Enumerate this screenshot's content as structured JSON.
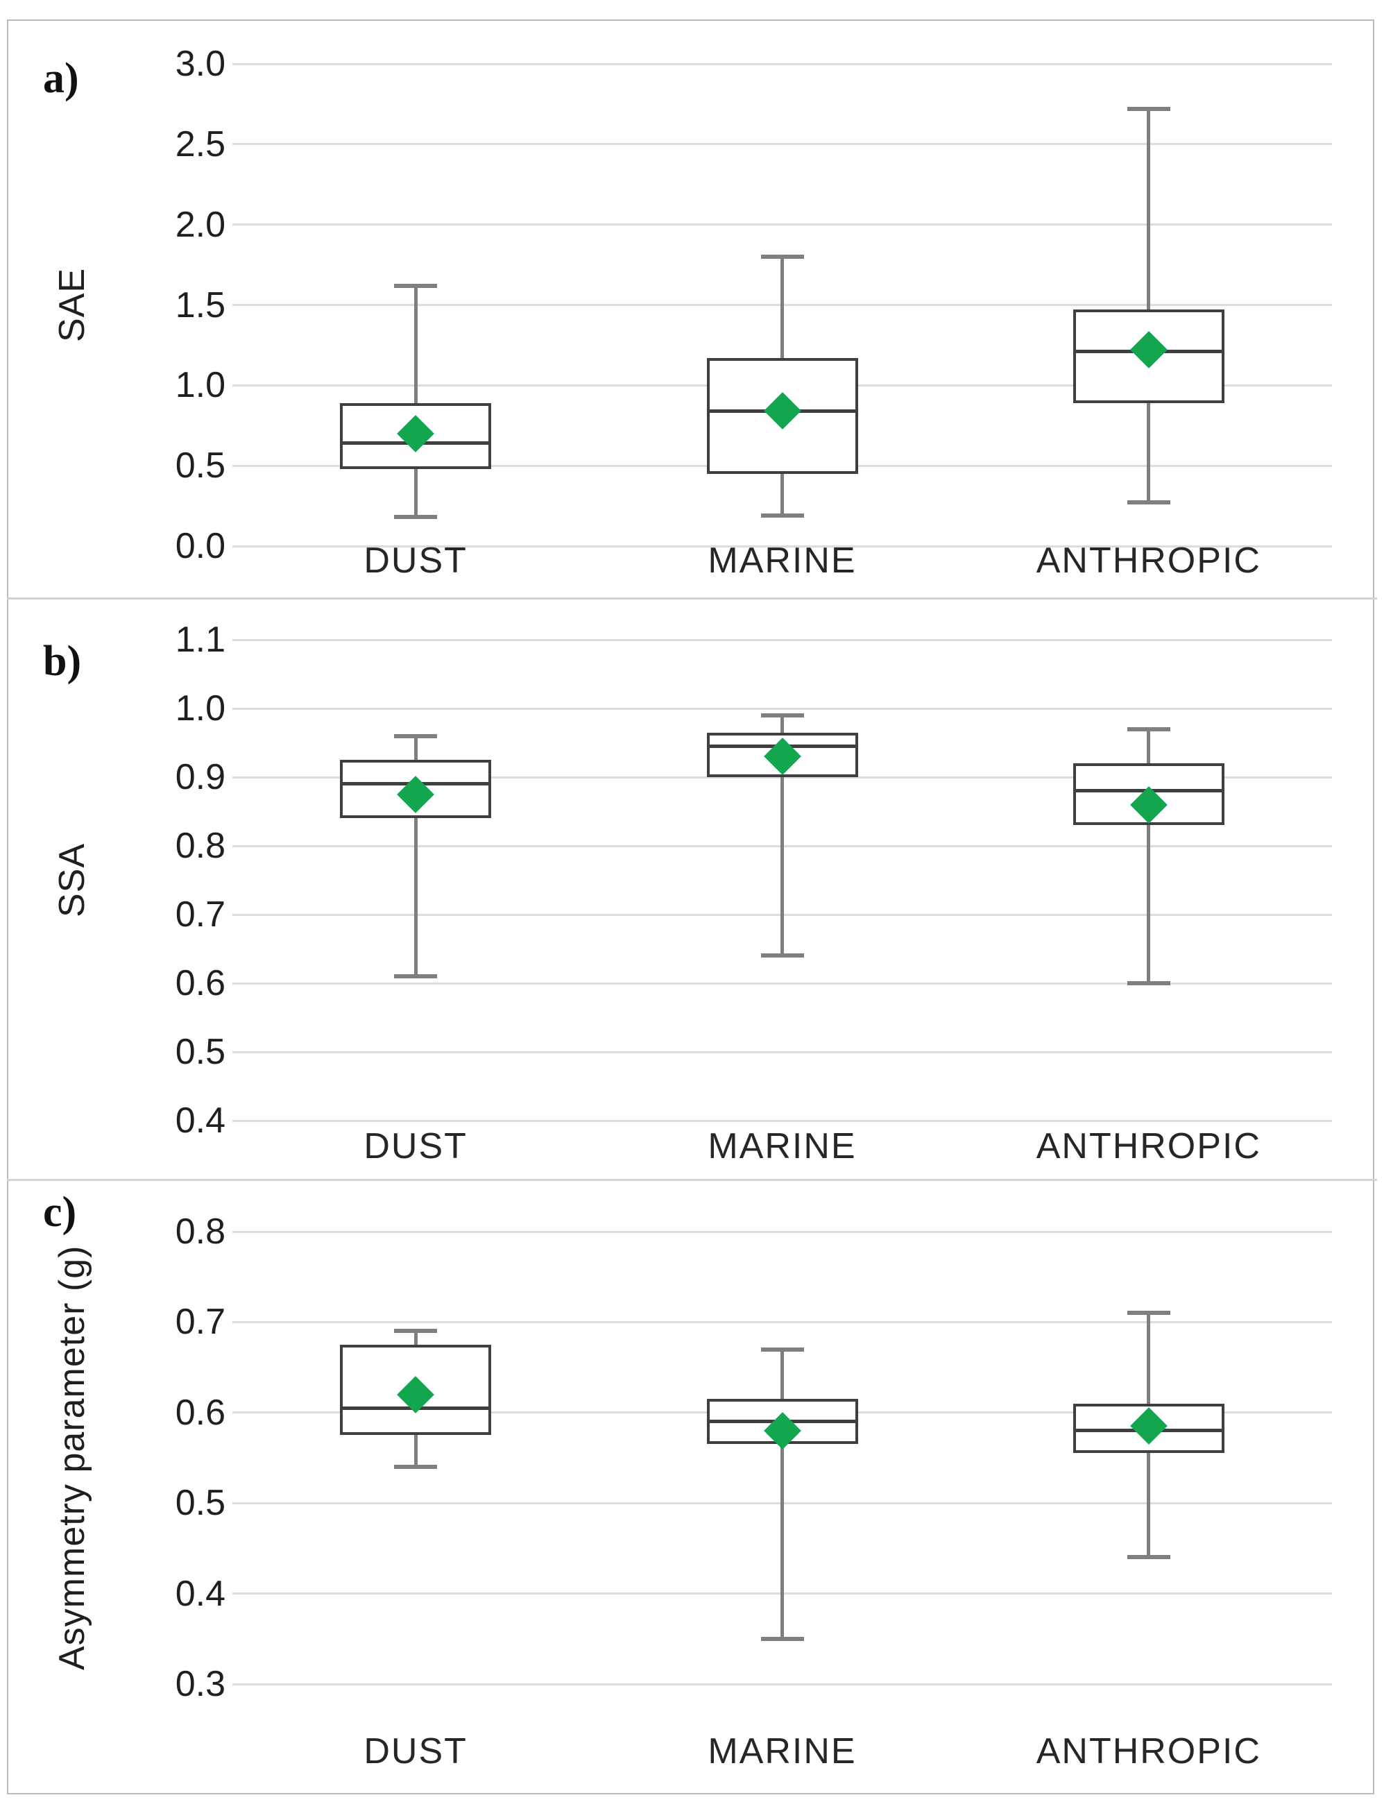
{
  "figure_title": "",
  "style": {
    "mean_diamond_color": "#12a74e",
    "box_border_color": "#3f3f3f",
    "median_color": "#3f3f3f",
    "whisker_color": "#7f7f7f",
    "gridline_color": "#dcdcdc",
    "text_color": "#1f1f1f"
  },
  "chart_data": [
    {
      "type": "box",
      "panel_label": "a)",
      "ylabel": "SAE",
      "ylim": [
        0.0,
        3.0
      ],
      "yticks": [
        3.0,
        2.5,
        2.0,
        1.5,
        1.0,
        0.5,
        0.0
      ],
      "grid": true,
      "legend": false,
      "mean_marker": "diamond",
      "categories": [
        "DUST",
        "MARINE",
        "ANTHROPIC"
      ],
      "series": [
        {
          "name": "DUST",
          "whisker_low": 0.18,
          "q1": 0.48,
          "median": 0.64,
          "mean": 0.7,
          "q3": 0.89,
          "whisker_high": 1.62
        },
        {
          "name": "MARINE",
          "whisker_low": 0.19,
          "q1": 0.45,
          "median": 0.84,
          "mean": 0.84,
          "q3": 1.17,
          "whisker_high": 1.8
        },
        {
          "name": "ANTHROPIC",
          "whisker_low": 0.27,
          "q1": 0.89,
          "median": 1.21,
          "mean": 1.22,
          "q3": 1.47,
          "whisker_high": 2.72
        }
      ]
    },
    {
      "type": "box",
      "panel_label": "b)",
      "ylabel": "SSA",
      "ylim": [
        0.4,
        1.1
      ],
      "yticks": [
        1.1,
        1.0,
        0.9,
        0.8,
        0.7,
        0.6,
        0.5,
        0.4
      ],
      "grid": true,
      "legend": false,
      "mean_marker": "diamond",
      "categories": [
        "DUST",
        "MARINE",
        "ANTHROPIC"
      ],
      "series": [
        {
          "name": "DUST",
          "whisker_low": 0.61,
          "q1": 0.84,
          "median": 0.89,
          "mean": 0.875,
          "q3": 0.925,
          "whisker_high": 0.96
        },
        {
          "name": "MARINE",
          "whisker_low": 0.64,
          "q1": 0.9,
          "median": 0.945,
          "mean": 0.93,
          "q3": 0.965,
          "whisker_high": 0.99
        },
        {
          "name": "ANTHROPIC",
          "whisker_low": 0.6,
          "q1": 0.83,
          "median": 0.88,
          "mean": 0.86,
          "q3": 0.92,
          "whisker_high": 0.97
        }
      ]
    },
    {
      "type": "box",
      "panel_label": "c)",
      "ylabel": "Asymmetry parameter (g)",
      "ylim": [
        0.3,
        0.8
      ],
      "yticks": [
        0.8,
        0.7,
        0.6,
        0.5,
        0.4,
        0.3
      ],
      "grid": true,
      "legend": false,
      "mean_marker": "diamond",
      "categories": [
        "DUST",
        "MARINE",
        "ANTHROPIC"
      ],
      "series": [
        {
          "name": "DUST",
          "whisker_low": 0.54,
          "q1": 0.575,
          "median": 0.605,
          "mean": 0.62,
          "q3": 0.675,
          "whisker_high": 0.69
        },
        {
          "name": "MARINE",
          "whisker_low": 0.35,
          "q1": 0.565,
          "median": 0.59,
          "mean": 0.58,
          "q3": 0.615,
          "whisker_high": 0.67
        },
        {
          "name": "ANTHROPIC",
          "whisker_low": 0.44,
          "q1": 0.555,
          "median": 0.58,
          "mean": 0.585,
          "q3": 0.61,
          "whisker_high": 0.71
        }
      ]
    }
  ]
}
